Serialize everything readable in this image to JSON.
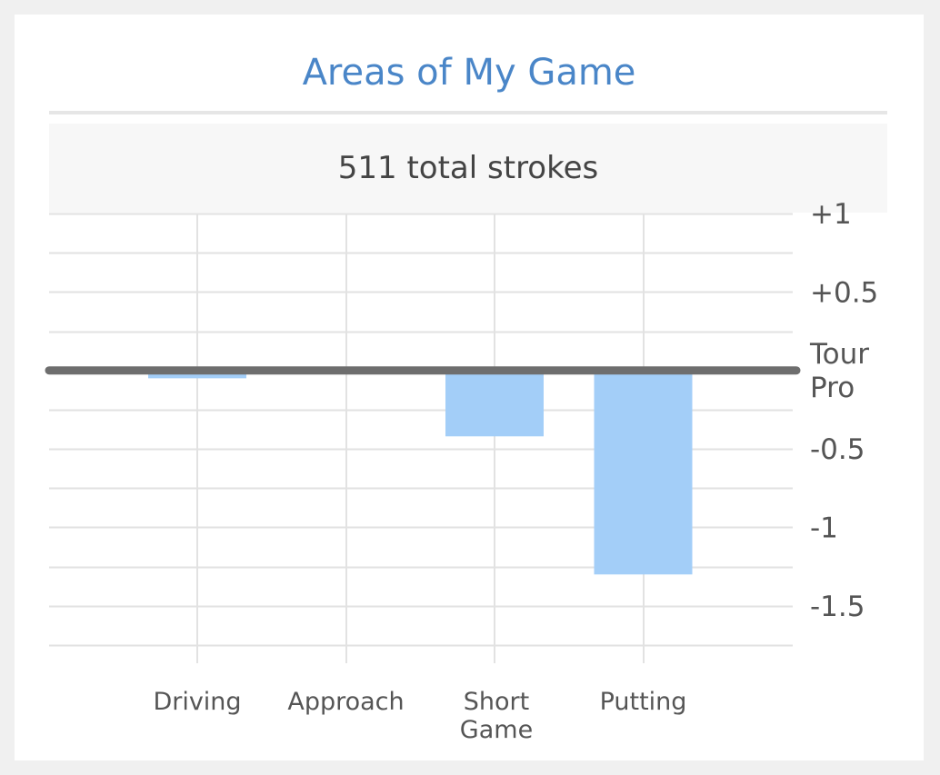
{
  "card": {
    "title": "Areas of My Game",
    "summary": "511 total strokes"
  },
  "chart_data": {
    "type": "bar",
    "categories": [
      [
        "Driving"
      ],
      [
        "Approach"
      ],
      [
        "Short",
        "Game"
      ],
      [
        "Putting"
      ]
    ],
    "values": [
      -0.05,
      -0.01,
      -0.42,
      -1.3
    ],
    "ylim": [
      -1.75,
      1.0
    ],
    "yticks": [
      {
        "value": 1,
        "label": "+1"
      },
      {
        "value": 0.5,
        "label": "+0.5"
      },
      {
        "value": 0,
        "label": [
          "Tour",
          "Pro"
        ]
      },
      {
        "value": -0.5,
        "label": "-0.5"
      },
      {
        "value": -1,
        "label": "-1"
      },
      {
        "value": -1.5,
        "label": "-1.5"
      }
    ],
    "grid": true,
    "colors": {
      "bar": "#a3cef8",
      "baseline": "#6e6e6e",
      "grid": "#e2e2e2",
      "tick_text": "#555555"
    }
  }
}
